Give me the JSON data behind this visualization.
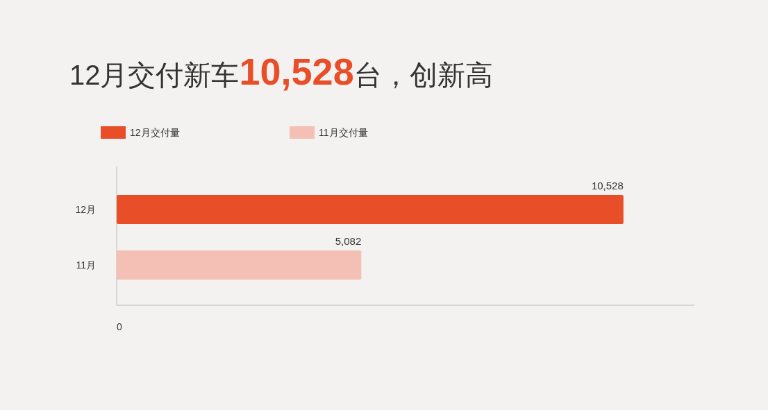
{
  "chart_data": {
    "type": "bar",
    "orientation": "horizontal",
    "stacked": true,
    "title": "12月交付新车10,528台，创新高",
    "categories": [
      "12月",
      "11月"
    ],
    "series": [
      {
        "name": "12月交付量",
        "color": "#e84e27",
        "values": [
          10528,
          null
        ],
        "value_labels": [
          "10,528",
          null
        ]
      },
      {
        "name": "11月交付量",
        "color": "#f4c0b5",
        "values": [
          null,
          5082
        ],
        "value_labels": [
          null,
          "5,082"
        ]
      }
    ],
    "annotations": [
      "0"
    ],
    "legend": "top left"
  }
}
